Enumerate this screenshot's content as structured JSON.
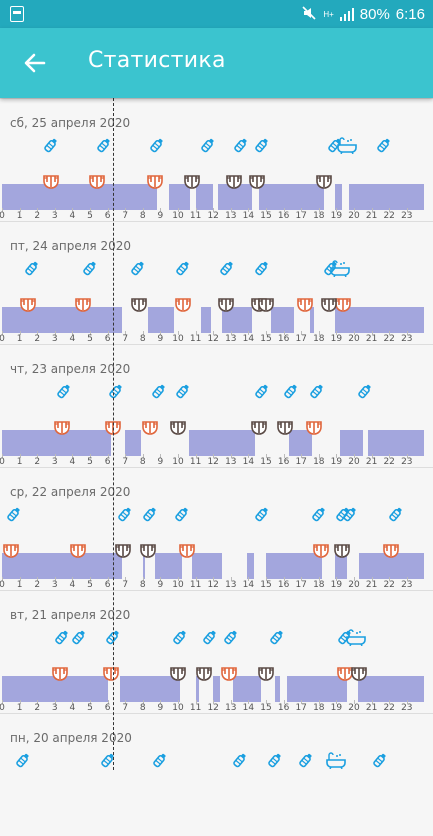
{
  "status_bar": {
    "battery": "80%",
    "time": "6:16",
    "network": "H+"
  },
  "app_bar": {
    "title": "Статистика"
  },
  "colors": {
    "status_bar": "#23a9bd",
    "app_bar": "#3bc4cf",
    "sleep_bar": "#a3a6dd",
    "bottle": "#1a9fe0",
    "diaper_orange": "#e0663c",
    "diaper_dark": "#5a4a45"
  },
  "hour_labels": [
    "0",
    "1",
    "2",
    "3",
    "4",
    "5",
    "6",
    "7",
    "8",
    "9",
    "10",
    "11",
    "12",
    "13",
    "14",
    "15",
    "16",
    "17",
    "18",
    "19",
    "20",
    "21",
    "22",
    "23"
  ],
  "days": [
    {
      "date": "сб, 25 апреля 2020",
      "sleep": [
        [
          0,
          8.8
        ],
        [
          9.5,
          10.7
        ],
        [
          11,
          12
        ],
        [
          12.3,
          14.2
        ],
        [
          14.6,
          18.3
        ],
        [
          18.9,
          19.3
        ],
        [
          19.7,
          23.99
        ]
      ],
      "bottles": [
        2.8,
        5.8,
        8.8,
        11.7,
        13.6,
        14.8,
        18.9,
        21.7
      ],
      "baths": [
        19.6
      ],
      "diapers_orange": [
        2.8,
        5.4,
        8.7
      ],
      "diapers_dark": [
        10.8,
        13.2,
        14.5,
        18.3
      ]
    },
    {
      "date": "пт, 24 апреля 2020",
      "sleep": [
        [
          0,
          6.8
        ],
        [
          8.3,
          9.8
        ],
        [
          11.3,
          11.9
        ],
        [
          12.5,
          14.2
        ],
        [
          15.3,
          16.6
        ],
        [
          17.5,
          17.7
        ],
        [
          18.9,
          23.99
        ]
      ],
      "bottles": [
        1.7,
        5.0,
        7.7,
        10.3,
        12.8,
        14.8,
        18.7
      ],
      "baths": [
        19.2
      ],
      "diapers_orange": [
        1.5,
        4.6,
        10.3,
        17.2,
        19.4
      ],
      "diapers_dark": [
        7.8,
        12.7,
        14.6,
        15.0,
        18.6
      ]
    },
    {
      "date": "чт, 23 апреля 2020",
      "sleep": [
        [
          0,
          6.2
        ],
        [
          7,
          7.9
        ],
        [
          10.6,
          14.4
        ],
        [
          16.3,
          17.6
        ],
        [
          19.2,
          20.5
        ],
        [
          20.8,
          23.99
        ]
      ],
      "bottles": [
        3.5,
        6.5,
        8.9,
        10.3,
        14.8,
        16.4,
        17.9,
        20.6
      ],
      "baths": [],
      "diapers_orange": [
        3.4,
        6.3,
        8.4,
        17.7
      ],
      "diapers_dark": [
        10.0,
        14.6,
        16.1
      ]
    },
    {
      "date": "ср, 22 апреля 2020",
      "sleep": [
        [
          0,
          6.8
        ],
        [
          8.0,
          8.1
        ],
        [
          8.7,
          10.2
        ],
        [
          10.8,
          12.5
        ],
        [
          13.9,
          14.3
        ],
        [
          15,
          18.2
        ],
        [
          18.9,
          19.6
        ],
        [
          20.3,
          23.99
        ]
      ],
      "bottles": [
        0.7,
        7.0,
        8.4,
        10.2,
        14.8,
        18.0,
        19.4,
        19.8,
        22.4
      ],
      "baths": [],
      "diapers_orange": [
        0.5,
        4.3,
        10.5,
        18.1,
        22.1
      ],
      "diapers_dark": [
        6.9,
        8.3,
        19.3
      ]
    },
    {
      "date": "вт, 21 апреля 2020",
      "sleep": [
        [
          0,
          6.0
        ],
        [
          6.7,
          10.1
        ],
        [
          11,
          11.2
        ],
        [
          12.0,
          12.4
        ],
        [
          13.1,
          14.7
        ],
        [
          15.5,
          15.8
        ],
        [
          16.2,
          19.6
        ],
        [
          20.2,
          23.99
        ]
      ],
      "bottles": [
        3.4,
        4.4,
        6.3,
        10.1,
        11.8,
        13.0,
        15.6,
        19.5
      ],
      "baths": [
        20.1
      ],
      "diapers_orange": [
        3.3,
        6.2,
        12.9,
        19.5
      ],
      "diapers_dark": [
        10.0,
        11.5,
        15.0,
        20.3
      ]
    },
    {
      "date": "пн, 20 апреля 2020",
      "sleep": [],
      "bottles": [
        1.2,
        6.0,
        9.0,
        13.5,
        15.5,
        17.3,
        21.5
      ],
      "baths": [
        19.0
      ],
      "diapers_orange": [],
      "diapers_dark": []
    }
  ]
}
